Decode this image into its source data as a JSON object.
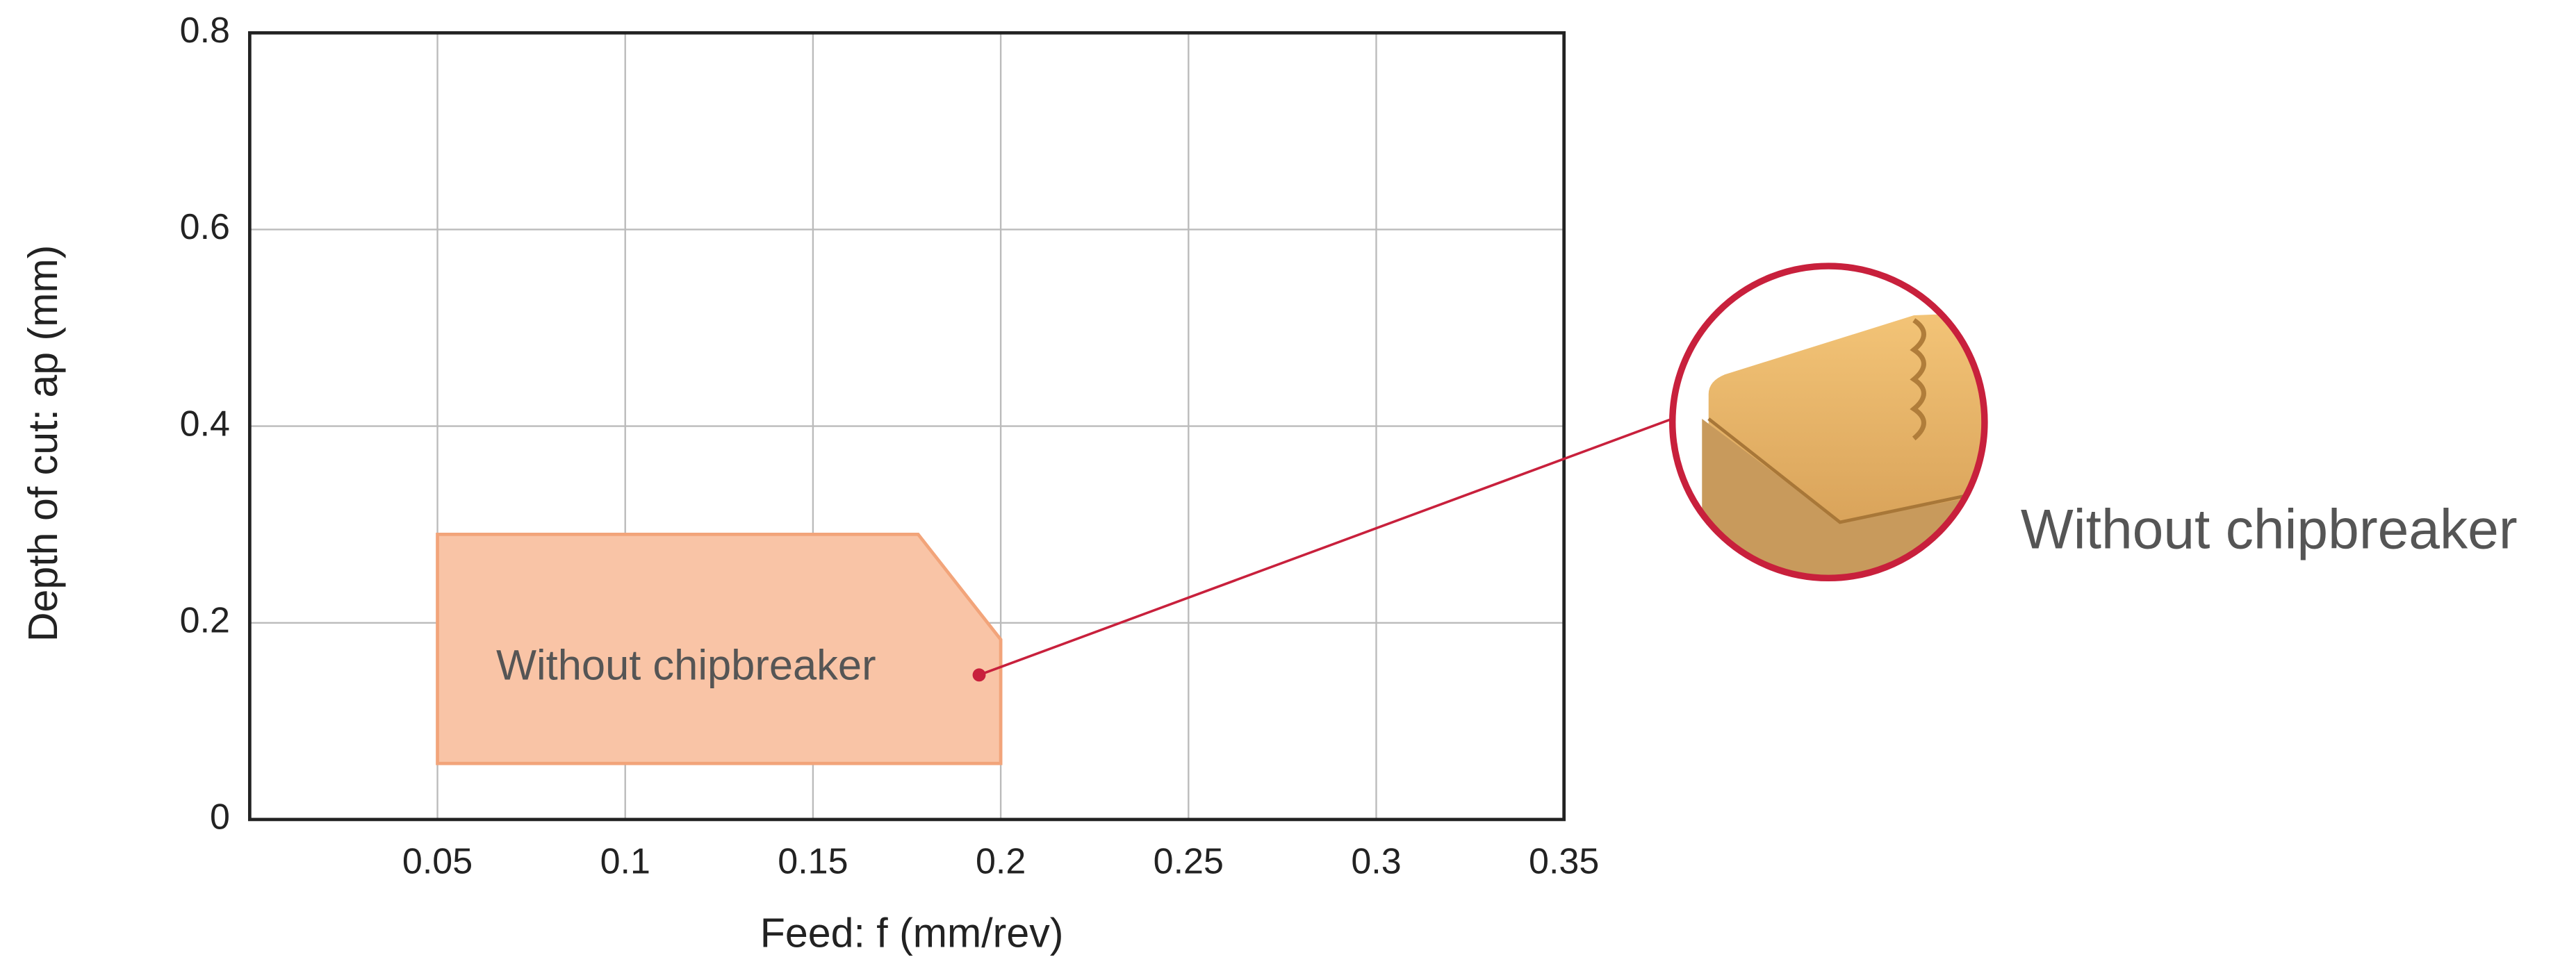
{
  "chart_data": {
    "type": "polygon",
    "x_label": "Feed: f (mm/rev)",
    "y_label": "Depth of cut: ap (mm)",
    "x": [
      0.05,
      0.05,
      0.178,
      0.2,
      0.2
    ],
    "y": [
      0.057,
      0.29,
      0.29,
      0.183,
      0.057
    ],
    "color": "#f9c4a6",
    "edge_color": "#f2a47a",
    "label": "Without chipbreaker",
    "callout_label": "Without chipbreaker",
    "callout_color": "#c8203c",
    "xlim": [
      0,
      0.35
    ],
    "xticks": [
      0.05,
      0.1,
      0.15,
      0.2,
      0.25,
      0.3,
      0.35
    ],
    "ylim": [
      0,
      0.8
    ],
    "yticks": [
      0,
      0.2,
      0.4,
      0.6,
      0.8
    ],
    "grid": true
  }
}
